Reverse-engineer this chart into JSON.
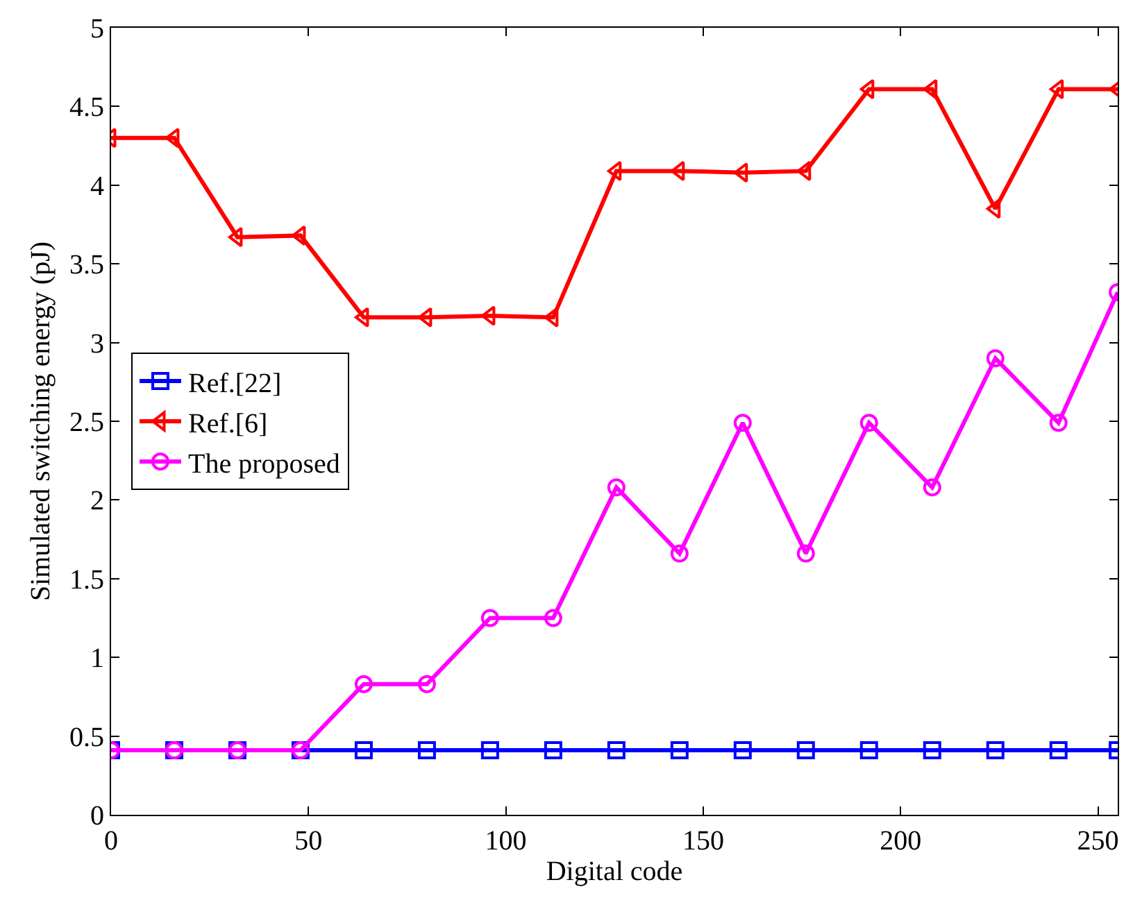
{
  "chart_data": {
    "type": "line",
    "xlabel": "Digital code",
    "ylabel": "Simulated switching energy (pJ)",
    "x": [
      0,
      16,
      32,
      48,
      64,
      80,
      96,
      112,
      128,
      144,
      160,
      176,
      192,
      208,
      224,
      240,
      255
    ],
    "xlim": [
      0,
      255
    ],
    "xticks": [
      0,
      50,
      100,
      150,
      200,
      250
    ],
    "ylim": [
      0,
      5
    ],
    "yticks": [
      0,
      0.5,
      1,
      1.5,
      2,
      2.5,
      3,
      3.5,
      4,
      4.5,
      5
    ],
    "legend": "left",
    "series": [
      {
        "name": "Ref.[22]",
        "color": "#0000ff",
        "marker": "square",
        "values": [
          0.41,
          0.41,
          0.41,
          0.41,
          0.41,
          0.41,
          0.41,
          0.41,
          0.41,
          0.41,
          0.41,
          0.41,
          0.41,
          0.41,
          0.41,
          0.41,
          0.41
        ]
      },
      {
        "name": "Ref.[6]",
        "color": "#ff0000",
        "marker": "triangle",
        "values": [
          4.3,
          4.3,
          3.67,
          3.68,
          3.16,
          3.16,
          3.17,
          3.16,
          4.09,
          4.09,
          4.08,
          4.09,
          4.61,
          4.61,
          3.85,
          4.61,
          4.61
        ]
      },
      {
        "name": "The proposed",
        "color": "#ff00ff",
        "marker": "circle",
        "values": [
          0.41,
          0.41,
          0.41,
          0.41,
          0.83,
          0.83,
          1.25,
          1.25,
          2.08,
          1.66,
          2.49,
          1.66,
          2.49,
          2.08,
          2.9,
          2.49,
          3.32
        ]
      }
    ]
  }
}
